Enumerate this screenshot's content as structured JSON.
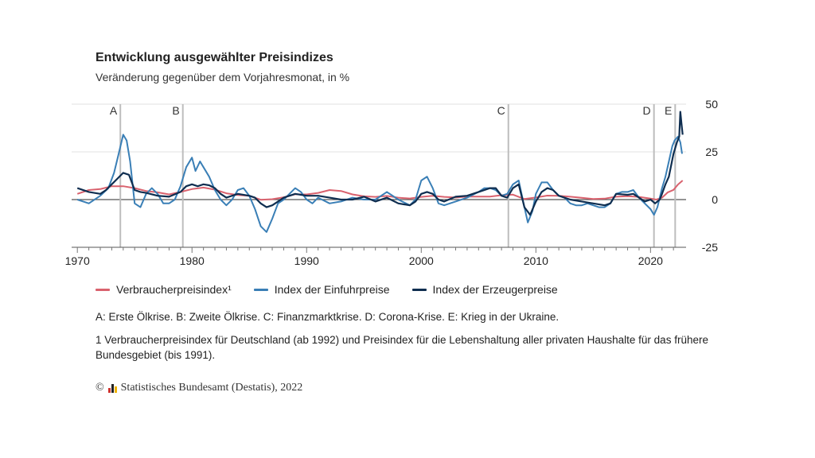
{
  "title": "Entwicklung ausgewählter Preisindizes",
  "subtitle": "Veränderung gegenüber dem Vorjahresmonat, in %",
  "legend": [
    {
      "label": "Verbraucherpreisindex¹",
      "color": "#d9626e"
    },
    {
      "label": "Index der Einfuhrpreise",
      "color": "#3a7fb6"
    },
    {
      "label": "Index der Erzeugerpreise",
      "color": "#0f2e50"
    }
  ],
  "notes": {
    "events": "A: Erste Ölkrise. B: Zweite Ölkrise. C: Finanzmarktkrise. D: Corona-Krise. E: Krieg in der Ukraine.",
    "footnote": "1 Verbraucherpreisindex für Deutschland (ab 1992) und Preisindex für die Lebenshaltung aller privaten Haushalte für das frühere Bundesgebiet (bis 1991)."
  },
  "source": {
    "copyright": "©",
    "text": "Statistisches Bundesamt (Destatis), 2022",
    "logo_colors": [
      "#d0312d",
      "#222222",
      "#f0b400"
    ]
  },
  "chart_data": {
    "type": "line",
    "title": "Entwicklung ausgewählter Preisindizes",
    "ylabel": "Veränderung gegenüber dem Vorjahresmonat, in %",
    "xlim": [
      1969.5,
      2023.1
    ],
    "ylim": [
      -25,
      50
    ],
    "x_ticks": [
      1970,
      1980,
      1990,
      2000,
      2010,
      2020
    ],
    "y_ticks": [
      50,
      25,
      0,
      -25
    ],
    "events": [
      {
        "label": "A",
        "x": 1973.75
      },
      {
        "label": "B",
        "x": 1979.2
      },
      {
        "label": "C",
        "x": 2007.6
      },
      {
        "label": "D",
        "x": 2020.3
      },
      {
        "label": "E",
        "x": 2022.15
      }
    ],
    "series": [
      {
        "name": "Verbraucherpreisindex¹",
        "color": "#d9626e",
        "x": [
          1970,
          1971,
          1972,
          1973,
          1974,
          1975,
          1976,
          1977,
          1978,
          1979,
          1980,
          1981,
          1982,
          1983,
          1984,
          1985,
          1986,
          1987,
          1988,
          1989,
          1990,
          1991,
          1992,
          1993,
          1994,
          1995,
          1996,
          1997,
          1998,
          1999,
          2000,
          2001,
          2002,
          2003,
          2004,
          2005,
          2006,
          2007,
          2008,
          2009,
          2010,
          2011,
          2012,
          2013,
          2014,
          2015,
          2016,
          2017,
          2018,
          2019,
          2020,
          2020.5,
          2021,
          2021.5,
          2022,
          2022.4,
          2022.8
        ],
        "values": [
          3,
          5,
          5.5,
          7,
          7,
          6,
          4.5,
          3.8,
          2.7,
          4,
          5.5,
          6.3,
          5.2,
          3.3,
          2.4,
          2,
          -0.1,
          0.2,
          1.2,
          2.8,
          2.7,
          3.5,
          5,
          4.5,
          2.7,
          1.7,
          1.4,
          1.9,
          1,
          0.6,
          1.4,
          2,
          1.4,
          1.1,
          1.6,
          1.6,
          1.6,
          2.3,
          2.6,
          0.3,
          1.1,
          2.1,
          2,
          1.5,
          0.9,
          0.3,
          0.5,
          1.5,
          1.8,
          1.4,
          0.5,
          0,
          1,
          3.8,
          5.1,
          7.9,
          10
        ]
      },
      {
        "name": "Index der Einfuhrpreise",
        "color": "#3a7fb6",
        "x": [
          1970,
          1971,
          1972,
          1972.7,
          1973.2,
          1973.6,
          1974,
          1974.3,
          1974.6,
          1975,
          1975.5,
          1976,
          1976.5,
          1977,
          1977.5,
          1978,
          1978.5,
          1979,
          1979.5,
          1980,
          1980.3,
          1980.7,
          1981,
          1981.5,
          1982,
          1982.5,
          1983,
          1983.5,
          1984,
          1984.5,
          1985,
          1985.5,
          1986,
          1986.5,
          1987,
          1987.5,
          1988,
          1989,
          1989.5,
          1990,
          1990.5,
          1991,
          1992,
          1993,
          1994,
          1995,
          1996,
          1997,
          1998,
          1999,
          1999.5,
          2000,
          2000.5,
          2001,
          2001.5,
          2002,
          2002.5,
          2003,
          2004,
          2005,
          2005.5,
          2006,
          2006.5,
          2007,
          2007.5,
          2008,
          2008.5,
          2009,
          2009.3,
          2009.7,
          2010,
          2010.5,
          2011,
          2011.5,
          2012,
          2012.5,
          2013,
          2013.5,
          2014,
          2014.5,
          2015,
          2015.5,
          2016,
          2016.5,
          2017,
          2017.5,
          2018,
          2018.5,
          2019,
          2019.5,
          2020,
          2020.3,
          2020.6,
          2021,
          2021.3,
          2021.6,
          2021.9,
          2022.1,
          2022.4,
          2022.6,
          2022.75
        ],
        "values": [
          0,
          -2,
          2,
          6,
          14,
          24,
          34,
          31,
          20,
          -2,
          -4,
          3,
          6,
          3,
          -2,
          -2,
          0,
          7,
          17,
          22,
          15,
          20,
          17,
          12,
          5,
          0,
          -3,
          0,
          5,
          6,
          2,
          -5,
          -14,
          -17,
          -10,
          -2,
          0,
          6,
          4,
          0,
          -2,
          1,
          -2,
          -1,
          1,
          0,
          0,
          4,
          0,
          -3,
          0,
          10,
          12,
          6,
          -2,
          -3,
          -2,
          -1,
          1,
          4,
          6,
          6,
          5,
          2,
          3,
          8,
          10,
          -4,
          -12,
          -6,
          3,
          9,
          9,
          5,
          2,
          1,
          -2,
          -3,
          -3,
          -2,
          -3,
          -4,
          -4,
          -2,
          3,
          4,
          4,
          5,
          1,
          -2,
          -5,
          -8,
          -4,
          6,
          12,
          20,
          28,
          31,
          33,
          30,
          24
        ]
      },
      {
        "name": "Index der Erzeugerpreise",
        "color": "#0f2e50",
        "x": [
          1970,
          1971,
          1972,
          1972.5,
          1973,
          1973.5,
          1974,
          1974.5,
          1975,
          1975.5,
          1976,
          1977,
          1978,
          1979,
          1979.5,
          1980,
          1980.5,
          1981,
          1981.5,
          1982,
          1982.5,
          1983,
          1984,
          1985,
          1985.5,
          1986,
          1986.5,
          1987,
          1987.5,
          1988,
          1989,
          1990,
          1991,
          1992,
          1993,
          1994,
          1995,
          1996,
          1997,
          1998,
          1999,
          1999.5,
          2000,
          2000.5,
          2001,
          2001.5,
          2002,
          2003,
          2004,
          2005,
          2006,
          2006.5,
          2007,
          2007.5,
          2008,
          2008.5,
          2009,
          2009.5,
          2010,
          2010.5,
          2011,
          2011.5,
          2012,
          2013,
          2014,
          2015,
          2016,
          2016.5,
          2017,
          2018,
          2018.5,
          2019,
          2019.5,
          2020,
          2020.4,
          2020.8,
          2021,
          2021.3,
          2021.6,
          2022,
          2022.3,
          2022.5,
          2022.6,
          2022.7,
          2022.8
        ],
        "values": [
          6,
          4,
          3,
          5,
          8,
          11,
          14,
          13,
          5,
          4,
          3.5,
          2,
          1.5,
          4,
          7,
          8,
          7,
          8,
          7.5,
          6,
          3,
          1,
          3,
          2,
          1,
          -2,
          -4,
          -3,
          -1,
          1,
          3,
          2,
          2,
          1,
          0,
          0,
          1.5,
          -1,
          1,
          -2,
          -3,
          -1,
          3,
          4,
          3,
          0,
          -1,
          1.5,
          2,
          4,
          6,
          6,
          2,
          1,
          6,
          8,
          -4,
          -8,
          -1,
          4,
          6,
          5,
          2,
          0,
          -1,
          -2,
          -3,
          -2,
          3,
          2.5,
          3,
          1,
          -1,
          0,
          -2,
          0,
          3,
          8,
          12,
          24,
          30,
          33,
          46,
          40,
          34
        ]
      }
    ]
  }
}
